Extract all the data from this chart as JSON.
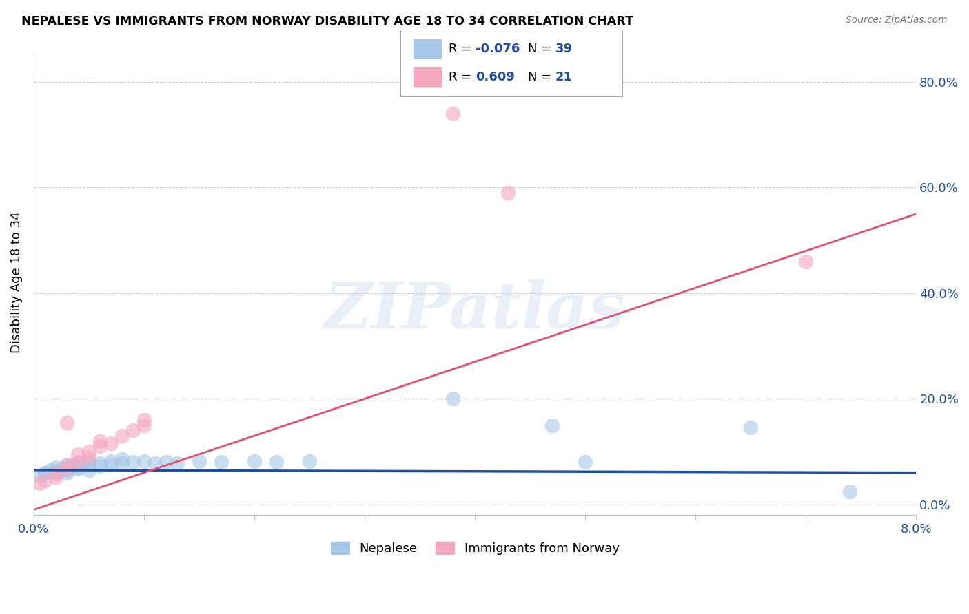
{
  "title": "NEPALESE VS IMMIGRANTS FROM NORWAY DISABILITY AGE 18 TO 34 CORRELATION CHART",
  "source": "Source: ZipAtlas.com",
  "ylabel": "Disability Age 18 to 34",
  "xlim": [
    0.0,
    0.08
  ],
  "ylim": [
    -0.02,
    0.86
  ],
  "ytick_vals": [
    0.0,
    0.2,
    0.4,
    0.6,
    0.8
  ],
  "ytick_labels_right": [
    "0.0%",
    "20.0%",
    "40.0%",
    "60.0%",
    "80.0%"
  ],
  "xtick_vals": [
    0.0,
    0.01,
    0.02,
    0.03,
    0.04,
    0.05,
    0.06,
    0.07,
    0.08
  ],
  "xtick_labels": [
    "0.0%",
    "",
    "",
    "",
    "",
    "",
    "",
    "",
    "8.0%"
  ],
  "legend_label1": "Nepalese",
  "legend_label2": "Immigrants from Norway",
  "R_blue": -0.076,
  "N_blue": 39,
  "R_pink": 0.609,
  "N_pink": 21,
  "blue_scatter_color": "#a8c8e8",
  "pink_scatter_color": "#f4a8c0",
  "blue_line_color": "#1f4e9e",
  "pink_line_color": "#e05070",
  "blue_scatter": [
    [
      0.0005,
      0.055
    ],
    [
      0.001,
      0.06
    ],
    [
      0.001,
      0.058
    ],
    [
      0.0015,
      0.065
    ],
    [
      0.002,
      0.062
    ],
    [
      0.002,
      0.07
    ],
    [
      0.002,
      0.058
    ],
    [
      0.0025,
      0.068
    ],
    [
      0.003,
      0.072
    ],
    [
      0.003,
      0.065
    ],
    [
      0.003,
      0.06
    ],
    [
      0.0035,
      0.075
    ],
    [
      0.004,
      0.078
    ],
    [
      0.004,
      0.07
    ],
    [
      0.004,
      0.068
    ],
    [
      0.005,
      0.08
    ],
    [
      0.005,
      0.075
    ],
    [
      0.005,
      0.065
    ],
    [
      0.006,
      0.078
    ],
    [
      0.006,
      0.072
    ],
    [
      0.007,
      0.082
    ],
    [
      0.007,
      0.075
    ],
    [
      0.008,
      0.085
    ],
    [
      0.008,
      0.078
    ],
    [
      0.009,
      0.08
    ],
    [
      0.01,
      0.082
    ],
    [
      0.011,
      0.078
    ],
    [
      0.012,
      0.08
    ],
    [
      0.013,
      0.078
    ],
    [
      0.015,
      0.082
    ],
    [
      0.017,
      0.08
    ],
    [
      0.02,
      0.082
    ],
    [
      0.022,
      0.08
    ],
    [
      0.025,
      0.082
    ],
    [
      0.038,
      0.2
    ],
    [
      0.047,
      0.15
    ],
    [
      0.05,
      0.08
    ],
    [
      0.065,
      0.145
    ],
    [
      0.074,
      0.025
    ]
  ],
  "pink_scatter": [
    [
      0.0005,
      0.04
    ],
    [
      0.001,
      0.045
    ],
    [
      0.002,
      0.052
    ],
    [
      0.002,
      0.058
    ],
    [
      0.003,
      0.068
    ],
    [
      0.003,
      0.075
    ],
    [
      0.003,
      0.155
    ],
    [
      0.004,
      0.08
    ],
    [
      0.004,
      0.095
    ],
    [
      0.005,
      0.09
    ],
    [
      0.005,
      0.1
    ],
    [
      0.006,
      0.11
    ],
    [
      0.006,
      0.12
    ],
    [
      0.007,
      0.115
    ],
    [
      0.008,
      0.13
    ],
    [
      0.009,
      0.14
    ],
    [
      0.01,
      0.15
    ],
    [
      0.01,
      0.16
    ],
    [
      0.038,
      0.74
    ],
    [
      0.043,
      0.59
    ],
    [
      0.07,
      0.46
    ]
  ],
  "watermark_text": "ZIPatlas",
  "background_color": "#ffffff"
}
